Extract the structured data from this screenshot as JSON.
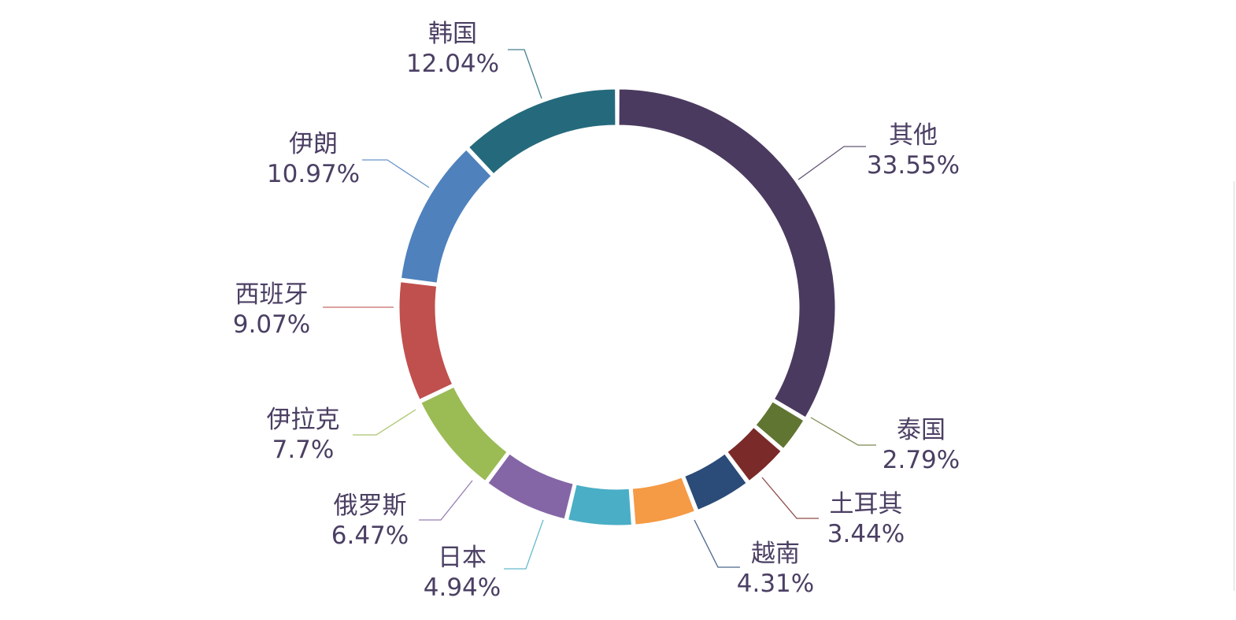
{
  "chart_data": {
    "type": "pie",
    "variant": "donut",
    "legend": "none",
    "slices": [
      {
        "label": "其他",
        "value_text": "33.55%",
        "value": 33.55,
        "color": "#4b3a5f"
      },
      {
        "label": "泰国",
        "value_text": "2.79%",
        "value": 2.79,
        "color": "#617532"
      },
      {
        "label": "土耳其",
        "value_text": "3.44%",
        "value": 3.44,
        "color": "#7a2a28"
      },
      {
        "label": "越南",
        "value_text": "4.31%",
        "value": 4.31,
        "color": "#2b4b78"
      },
      {
        "label": "",
        "value_text": "",
        "value": 4.72,
        "color": "#f59a45"
      },
      {
        "label": "日本",
        "value_text": "4.94%",
        "value": 4.94,
        "color": "#4aaec6"
      },
      {
        "label": "俄罗斯",
        "value_text": "6.47%",
        "value": 6.47,
        "color": "#8466a6"
      },
      {
        "label": "伊拉克",
        "value_text": "7.7%",
        "value": 7.7,
        "color": "#9bbb55"
      },
      {
        "label": "西班牙",
        "value_text": "9.07%",
        "value": 9.07,
        "color": "#c0504d"
      },
      {
        "label": "伊朗",
        "value_text": "10.97%",
        "value": 10.97,
        "color": "#4f81bd"
      },
      {
        "label": "韩国",
        "value_text": "12.04%",
        "value": 12.04,
        "color": "#246a7c"
      }
    ]
  }
}
